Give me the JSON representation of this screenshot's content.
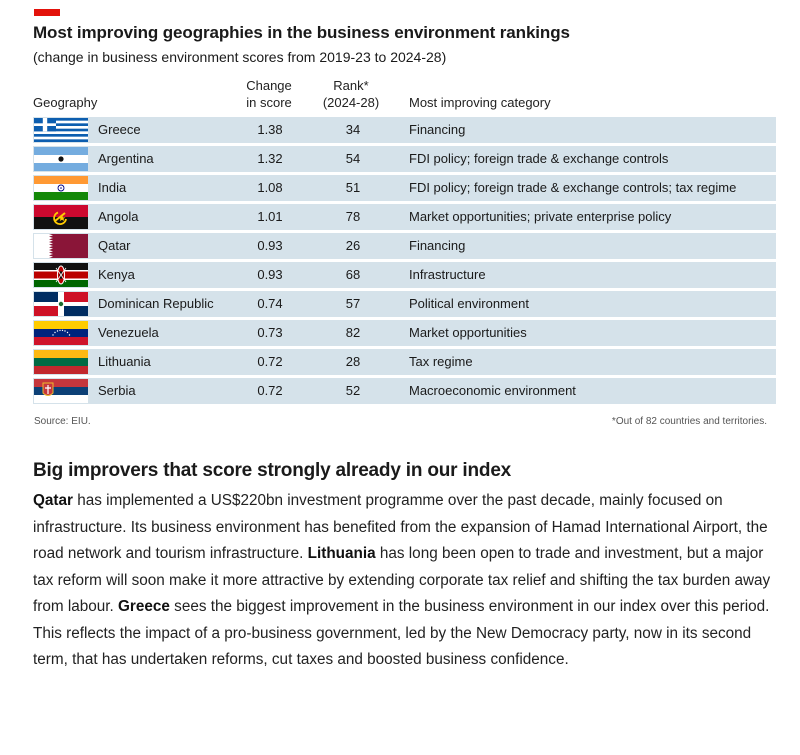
{
  "header": {
    "title": "Most improving geographies in the business environment rankings",
    "subtitle": "(change in business environment scores from 2019-23 to 2024-28)",
    "accent_color": "#e3120b"
  },
  "table": {
    "columns": {
      "geography": "Geography",
      "change_line1": "Change",
      "change_line2": "in score",
      "rank_line1": "Rank*",
      "rank_line2": "(2024-28)",
      "category": "Most improving category"
    },
    "row_color": "#d5e2ea",
    "rows": [
      {
        "flag": "greece-flag-icon",
        "geography": "Greece",
        "change": "1.38",
        "rank": "34",
        "category": "Financing"
      },
      {
        "flag": "argentina-flag-icon",
        "geography": "Argentina",
        "change": "1.32",
        "rank": "54",
        "category": "FDI policy; foreign trade & exchange controls"
      },
      {
        "flag": "india-flag-icon",
        "geography": "India",
        "change": "1.08",
        "rank": "51",
        "category": "FDI policy; foreign trade & exchange controls; tax regime"
      },
      {
        "flag": "angola-flag-icon",
        "geography": "Angola",
        "change": "1.01",
        "rank": "78",
        "category": "Market opportunities; private enterprise policy"
      },
      {
        "flag": "qatar-flag-icon",
        "geography": "Qatar",
        "change": "0.93",
        "rank": "26",
        "category": "Financing"
      },
      {
        "flag": "kenya-flag-icon",
        "geography": "Kenya",
        "change": "0.93",
        "rank": "68",
        "category": "Infrastructure"
      },
      {
        "flag": "dominican-republic-flag-icon",
        "geography": "Dominican Republic",
        "change": "0.74",
        "rank": "57",
        "category": "Political environment"
      },
      {
        "flag": "venezuela-flag-icon",
        "geography": "Venezuela",
        "change": "0.73",
        "rank": "82",
        "category": "Market opportunities"
      },
      {
        "flag": "lithuania-flag-icon",
        "geography": "Lithuania",
        "change": "0.72",
        "rank": "28",
        "category": "Tax regime"
      },
      {
        "flag": "serbia-flag-icon",
        "geography": "Serbia",
        "change": "0.72",
        "rank": "52",
        "category": "Macroeconomic environment"
      }
    ]
  },
  "source": "Source: EIU.",
  "footnote": "*Out of 82 countries and territories.",
  "article": {
    "heading": "Big improvers that score strongly already in our index",
    "p_qatar_bold": "Qatar",
    "p_qatar_text": " has implemented a US$220bn investment programme over the past decade, mainly focused on infrastructure. Its business environment has benefited from the expansion of Hamad International Airport, the road network and tourism infrastructure. ",
    "p_lithuania_bold": "Lithuania",
    "p_lithuania_text": " has long been open to trade and investment, but a major tax reform will soon make it more attractive by extending corporate tax relief and shifting the tax burden away from labour. ",
    "p_greece_bold": "Greece",
    "p_greece_text": " sees the biggest improvement in the business environment in our index over this period. This reflects the impact of a pro-business government, led by the New Democracy party, now in its second term, that has undertaken reforms, cut taxes and boosted business confidence."
  }
}
